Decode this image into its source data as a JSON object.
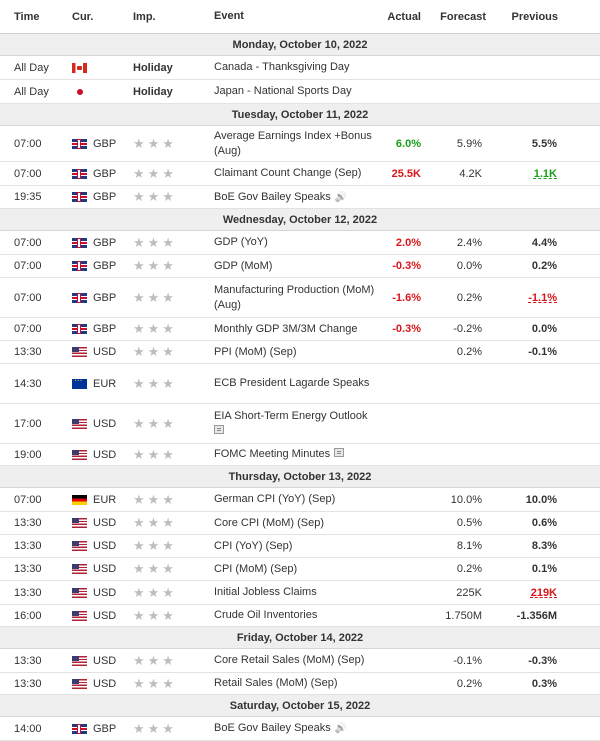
{
  "columns": {
    "time": "Time",
    "cur": "Cur.",
    "imp": "Imp.",
    "event": "Event",
    "actual": "Actual",
    "forecast": "Forecast",
    "previous": "Previous"
  },
  "star_glyphs": "★★★",
  "rows": [
    {
      "type": "date",
      "text": "Monday, October 10, 2022"
    },
    {
      "type": "event",
      "h": 24,
      "time": "All Day",
      "flag": "ca",
      "cur": "",
      "imp": "Holiday",
      "event": "Canada - Thanksgiving Day",
      "actual": "",
      "forecast": "",
      "previous": ""
    },
    {
      "type": "event",
      "h": 24,
      "time": "All Day",
      "flag": "jp",
      "cur": "",
      "imp": "Holiday",
      "event": "Japan - National Sports Day",
      "actual": "",
      "forecast": "",
      "previous": ""
    },
    {
      "type": "date",
      "text": "Tuesday, October 11, 2022"
    },
    {
      "type": "event",
      "h": 36,
      "time": "07:00",
      "flag": "gb",
      "cur": "GBP",
      "imp": "stars",
      "event": "Average Earnings Index +Bonus (Aug)",
      "actual": "6.0%",
      "actual_style": "green",
      "forecast": "5.9%",
      "previous": "5.5%",
      "previous_style": "bold"
    },
    {
      "type": "event",
      "h": 24,
      "time": "07:00",
      "flag": "gb",
      "cur": "GBP",
      "imp": "stars",
      "event": "Claimant Count Change (Sep)",
      "actual": "25.5K",
      "actual_style": "red",
      "forecast": "4.2K",
      "previous": "1.1K",
      "previous_style": "green ul"
    },
    {
      "type": "event",
      "h": 23,
      "time": "19:35",
      "flag": "gb",
      "cur": "GBP",
      "imp": "stars",
      "event": "BoE Gov Bailey Speaks",
      "icon": "speaker",
      "actual": "",
      "forecast": "",
      "previous": ""
    },
    {
      "type": "date",
      "text": "Wednesday, October 12, 2022"
    },
    {
      "type": "event",
      "h": 24,
      "time": "07:00",
      "flag": "gb",
      "cur": "GBP",
      "imp": "stars",
      "event": "GDP (YoY)",
      "actual": "2.0%",
      "actual_style": "red",
      "forecast": "2.4%",
      "previous": "4.4%",
      "previous_style": "bold"
    },
    {
      "type": "event",
      "h": 23,
      "time": "07:00",
      "flag": "gb",
      "cur": "GBP",
      "imp": "stars",
      "event": "GDP (MoM)",
      "actual": "-0.3%",
      "actual_style": "red",
      "forecast": "0.0%",
      "previous": "0.2%",
      "previous_style": "bold"
    },
    {
      "type": "event",
      "h": 40,
      "time": "07:00",
      "flag": "gb",
      "cur": "GBP",
      "imp": "stars",
      "event": "Manufacturing Production (MoM) (Aug)",
      "actual": "-1.6%",
      "actual_style": "red",
      "forecast": "0.2%",
      "previous": "-1.1%",
      "previous_style": "red ul"
    },
    {
      "type": "event",
      "h": 23,
      "time": "07:00",
      "flag": "gb",
      "cur": "GBP",
      "imp": "stars",
      "event": "Monthly GDP 3M/3M Change",
      "actual": "-0.3%",
      "actual_style": "red",
      "forecast": "-0.2%",
      "previous": "0.0%",
      "previous_style": "bold"
    },
    {
      "type": "event",
      "h": 23,
      "time": "13:30",
      "flag": "us",
      "cur": "USD",
      "imp": "stars",
      "event": "PPI (MoM) (Sep)",
      "actual": "",
      "forecast": "0.2%",
      "previous": "-0.1%",
      "previous_style": "bold"
    },
    {
      "type": "event",
      "h": 40,
      "time": "14:30",
      "flag": "eu",
      "cur": "EUR",
      "imp": "stars",
      "event": "ECB President Lagarde Speaks",
      "actual": "",
      "forecast": "",
      "previous": ""
    },
    {
      "type": "event",
      "h": 40,
      "time": "17:00",
      "flag": "us",
      "cur": "USD",
      "imp": "stars",
      "event": "EIA Short-Term Energy Outlook",
      "icon": "doc-below",
      "actual": "",
      "forecast": "",
      "previous": ""
    },
    {
      "type": "event",
      "h": 22,
      "time": "19:00",
      "flag": "us",
      "cur": "USD",
      "imp": "stars",
      "event": "FOMC Meeting Minutes",
      "icon": "doc",
      "actual": "",
      "forecast": "",
      "previous": ""
    },
    {
      "type": "date",
      "text": "Thursday, October 13, 2022"
    },
    {
      "type": "event",
      "h": 24,
      "time": "07:00",
      "flag": "de",
      "cur": "EUR",
      "imp": "stars",
      "event": "German CPI (YoY) (Sep)",
      "actual": "",
      "forecast": "10.0%",
      "previous": "10.0%",
      "previous_style": "bold"
    },
    {
      "type": "event",
      "h": 23,
      "time": "13:30",
      "flag": "us",
      "cur": "USD",
      "imp": "stars",
      "event": "Core CPI (MoM) (Sep)",
      "actual": "",
      "forecast": "0.5%",
      "previous": "0.6%",
      "previous_style": "bold"
    },
    {
      "type": "event",
      "h": 23,
      "time": "13:30",
      "flag": "us",
      "cur": "USD",
      "imp": "stars",
      "event": "CPI (YoY) (Sep)",
      "actual": "",
      "forecast": "8.1%",
      "previous": "8.3%",
      "previous_style": "bold"
    },
    {
      "type": "event",
      "h": 23,
      "time": "13:30",
      "flag": "us",
      "cur": "USD",
      "imp": "stars",
      "event": "CPI (MoM) (Sep)",
      "actual": "",
      "forecast": "0.2%",
      "previous": "0.1%",
      "previous_style": "bold"
    },
    {
      "type": "event",
      "h": 24,
      "time": "13:30",
      "flag": "us",
      "cur": "USD",
      "imp": "stars",
      "event": "Initial Jobless Claims",
      "actual": "",
      "forecast": "225K",
      "previous": "219K",
      "previous_style": "red ul"
    },
    {
      "type": "event",
      "h": 22,
      "time": "16:00",
      "flag": "us",
      "cur": "USD",
      "imp": "stars",
      "event": "Crude Oil Inventories",
      "actual": "",
      "forecast": "1.750M",
      "previous": "-1.356M",
      "previous_style": "bold"
    },
    {
      "type": "date",
      "text": "Friday, October 14, 2022"
    },
    {
      "type": "event",
      "h": 24,
      "time": "13:30",
      "flag": "us",
      "cur": "USD",
      "imp": "stars",
      "event": "Core Retail Sales (MoM) (Sep)",
      "actual": "",
      "forecast": "-0.1%",
      "previous": "-0.3%",
      "previous_style": "bold"
    },
    {
      "type": "event",
      "h": 22,
      "time": "13:30",
      "flag": "us",
      "cur": "USD",
      "imp": "stars",
      "event": "Retail Sales (MoM) (Sep)",
      "actual": "",
      "forecast": "0.2%",
      "previous": "0.3%",
      "previous_style": "bold"
    },
    {
      "type": "date",
      "text": "Saturday, October 15, 2022"
    },
    {
      "type": "event",
      "h": 24,
      "time": "14:00",
      "flag": "gb",
      "cur": "GBP",
      "imp": "stars",
      "event": "BoE Gov Bailey Speaks",
      "icon": "speaker",
      "actual": "",
      "forecast": "",
      "previous": ""
    }
  ]
}
